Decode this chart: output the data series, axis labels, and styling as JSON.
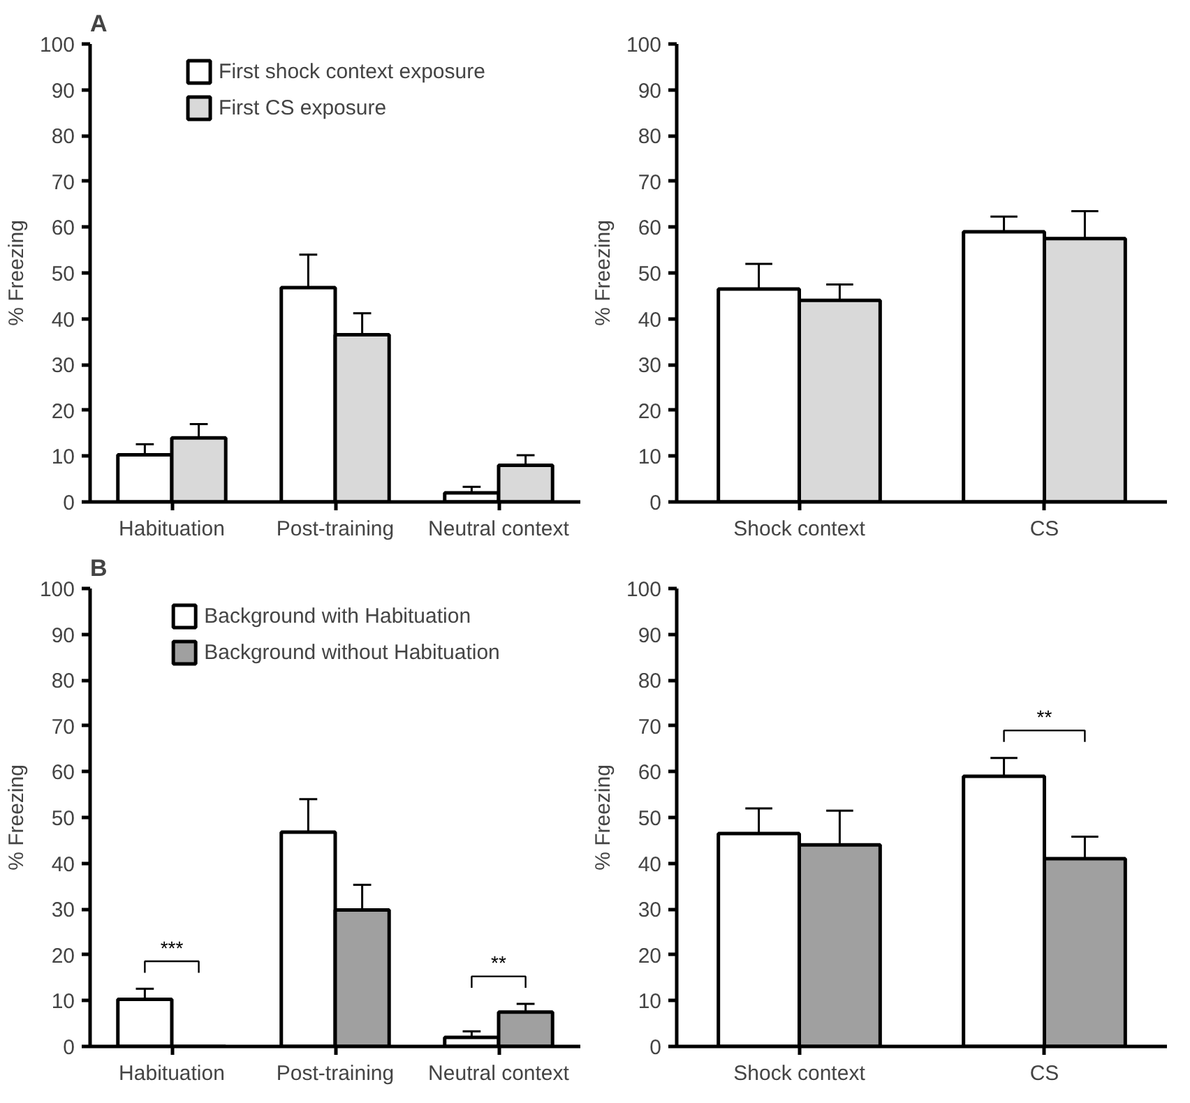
{
  "chart_data": [
    {
      "type": "bar",
      "title": "A",
      "ylabel": "% Freezing",
      "categories": [
        "Habituation",
        "Post-training",
        "Neutral context"
      ],
      "ylim": [
        0,
        100
      ],
      "yticks": [
        0,
        10,
        20,
        30,
        40,
        50,
        60,
        70,
        80,
        90,
        100
      ],
      "grid": false,
      "legend": "top",
      "series": [
        {
          "name": "First shock context exposure",
          "color": "#ffffff",
          "values": [
            10.3,
            46.8,
            2
          ],
          "errors": [
            2.3,
            7.2,
            1.3
          ]
        },
        {
          "name": "First CS exposure",
          "color": "#d9d9d9",
          "values": [
            14,
            36.5,
            8
          ],
          "errors": [
            3,
            4.7,
            2.2
          ]
        }
      ]
    },
    {
      "type": "bar",
      "ylabel": "% Freezing",
      "categories": [
        "Shock context",
        "CS"
      ],
      "ylim": [
        0,
        100
      ],
      "yticks": [
        0,
        10,
        20,
        30,
        40,
        50,
        60,
        70,
        80,
        90,
        100
      ],
      "grid": false,
      "series": [
        {
          "color": "#ffffff",
          "values": [
            46.5,
            59
          ],
          "errors": [
            5.5,
            3.3
          ]
        },
        {
          "color": "#d9d9d9",
          "values": [
            44,
            57.5
          ],
          "errors": [
            3.5,
            6
          ]
        }
      ]
    },
    {
      "type": "bar",
      "title": "B",
      "ylabel": "% Freezing",
      "categories": [
        "Habituation",
        "Post-training",
        "Neutral context"
      ],
      "ylim": [
        0,
        100
      ],
      "yticks": [
        0,
        10,
        20,
        30,
        40,
        50,
        60,
        70,
        80,
        90,
        100
      ],
      "grid": false,
      "legend": "top",
      "annotations": [
        {
          "text": "***",
          "x": "Habituation",
          "y": 10.3
        },
        {
          "text": "**",
          "x": "Neutral context",
          "y": 7.5
        }
      ],
      "series": [
        {
          "name": "Background with Habituation",
          "color": "#ffffff",
          "values": [
            10.3,
            46.8,
            2
          ],
          "errors": [
            2.3,
            7.2,
            1.3
          ]
        },
        {
          "name": "Background without Habituation",
          "color": "#a0a0a0",
          "values": [
            0,
            29.8,
            7.5
          ],
          "errors": [
            null,
            5.5,
            1.8
          ]
        }
      ]
    },
    {
      "type": "bar",
      "ylabel": "% Freezing",
      "categories": [
        "Shock context",
        "CS"
      ],
      "ylim": [
        0,
        100
      ],
      "yticks": [
        0,
        10,
        20,
        30,
        40,
        50,
        60,
        70,
        80,
        90,
        100
      ],
      "grid": false,
      "annotations": [
        {
          "text": "**",
          "x": "CS",
          "y": 59
        }
      ],
      "series": [
        {
          "color": "#ffffff",
          "values": [
            46.5,
            59
          ],
          "errors": [
            5.5,
            4
          ]
        },
        {
          "color": "#a0a0a0",
          "values": [
            44,
            41
          ],
          "errors": [
            7.5,
            4.8
          ]
        }
      ]
    }
  ]
}
